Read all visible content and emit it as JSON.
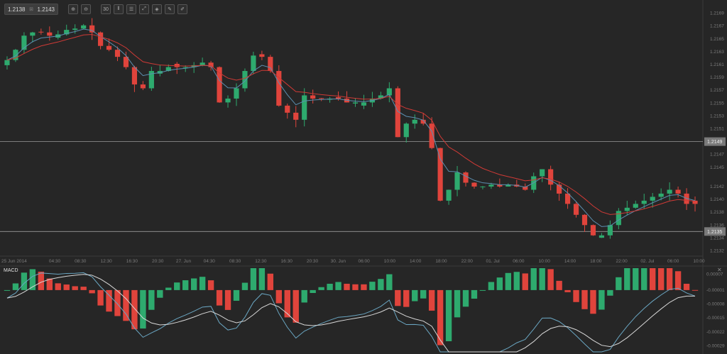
{
  "toolbar": {
    "bid": "1.2138",
    "ask": "1.2143",
    "separator": "⊠",
    "buttons": [
      {
        "name": "zoom-in-icon",
        "glyph": "⊕"
      },
      {
        "name": "zoom-out-icon",
        "glyph": "⊖"
      },
      {
        "name": "timeframe-icon",
        "glyph": "30"
      },
      {
        "name": "candles-icon",
        "glyph": "⫴"
      },
      {
        "name": "indicators-icon",
        "glyph": "☰"
      },
      {
        "name": "draw-icon",
        "glyph": "⤢"
      },
      {
        "name": "tag-icon",
        "glyph": "◈"
      },
      {
        "name": "edit-icon",
        "glyph": "✎"
      },
      {
        "name": "pen-icon",
        "glyph": "✐"
      }
    ]
  },
  "colors": {
    "up": "#2eaa6e",
    "down": "#e0443c",
    "ma_fast": "#5b8fb0",
    "ma_slow": "#d03a36",
    "macd_line": "#6aa6c2",
    "signal_line": "#d8d8d8",
    "hline": "#9a9a9a"
  },
  "chart_data": [
    {
      "type": "candlestick",
      "price_axis": {
        "ticks": [
          "1.2169",
          "1.2167",
          "1.2165",
          "1.2163",
          "1.2161",
          "1.2159",
          "1.2157",
          "1.2155",
          "1.2153",
          "1.2151",
          "1.2147",
          "1.2145",
          "1.2142",
          "1.2140",
          "1.2138",
          "1.2136",
          "1.2134",
          "1.2132"
        ],
        "ylim": [
          1.21315,
          1.21705
        ]
      },
      "horizontal_lines": [
        {
          "value": 1.2149,
          "label": "1.2149"
        },
        {
          "value": 1.2135,
          "label": "1.2135"
        }
      ],
      "time_axis": [
        "25 Jun 2014",
        "04:30",
        "08:30",
        "12:30",
        "16:30",
        "20:30",
        "27. Jun",
        "04:30",
        "08:30",
        "12:30",
        "16:30",
        "20:30",
        "30. Jun",
        "06:00",
        "10:00",
        "14:00",
        "18:00",
        "22:00",
        "01. Jul",
        "06:00",
        "10:00",
        "14:00",
        "18:00",
        "22:00",
        "02. Jul",
        "06:00",
        "10:00"
      ],
      "closes": [
        1.21617,
        1.21633,
        1.21655,
        1.2166,
        1.2166,
        1.21655,
        1.21657,
        1.21664,
        1.21666,
        1.21671,
        1.2166,
        1.21639,
        1.21633,
        1.21622,
        1.21606,
        1.21579,
        1.21573,
        1.216,
        1.216,
        1.21606,
        1.21606,
        1.21606,
        1.21609,
        1.21613,
        1.21606,
        1.21551,
        1.21557,
        1.21573,
        1.216,
        1.21624,
        1.21622,
        1.216,
        1.21546,
        1.21535,
        1.21524,
        1.21562,
        1.21557,
        1.21557,
        1.21557,
        1.21557,
        1.21551,
        1.21551,
        1.21551,
        1.21557,
        1.21562,
        1.21573,
        1.21497,
        1.21518,
        1.21524,
        1.21518,
        1.2148,
        1.21398,
        1.21415,
        1.21442,
        1.21426,
        1.2142,
        1.2142,
        1.21423,
        1.2142,
        1.21423,
        1.2142,
        1.21415,
        1.21436,
        1.21447,
        1.21423,
        1.21409,
        1.21393,
        1.21376,
        1.2136,
        1.21344,
        1.21344,
        1.2136,
        1.21382,
        1.21387,
        1.21393,
        1.21398,
        1.21404,
        1.21409,
        1.21415,
        1.21409,
        1.21393,
        1.21393
      ]
    },
    {
      "type": "bar",
      "title": "MACD",
      "ticks": [
        "0.00007",
        "-0.00001",
        "-0.00008",
        "-0.00015",
        "-0.00022",
        "-0.00029"
      ],
      "ylim": [
        -0.00032,
        0.0001
      ]
    }
  ]
}
